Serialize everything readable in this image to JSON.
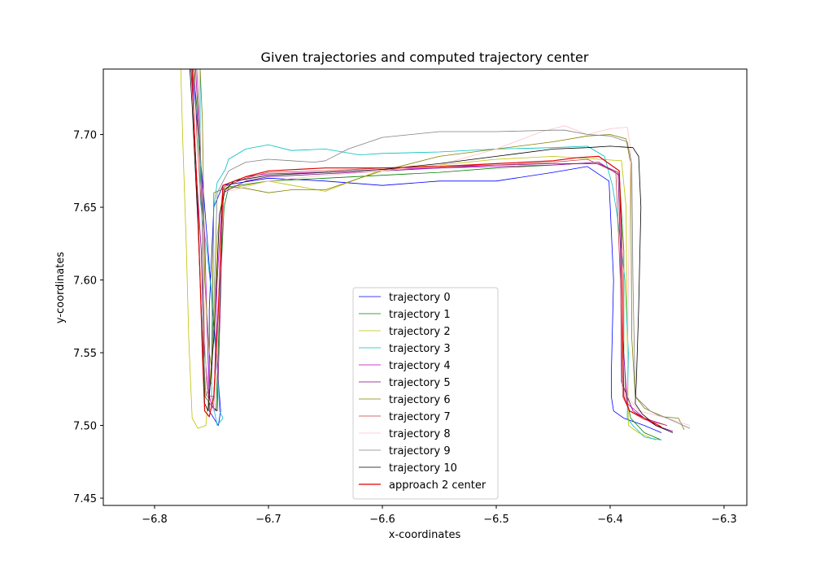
{
  "chart_data": {
    "type": "line",
    "title": "Given trajectories and computed trajectory center",
    "xlabel": "x-coordinates",
    "ylabel": "y-coordinates",
    "xlim": [
      -6.845,
      -6.28
    ],
    "ylim": [
      7.445,
      7.745
    ],
    "xticks": [
      -6.8,
      -6.7,
      -6.6,
      -6.5,
      -6.4,
      -6.3
    ],
    "yticks": [
      7.45,
      7.5,
      7.55,
      7.6,
      7.65,
      7.7
    ],
    "xtick_labels": [
      "−6.8",
      "−6.7",
      "−6.6",
      "−6.5",
      "−6.4",
      "−6.3"
    ],
    "ytick_labels": [
      "7.45",
      "7.50",
      "7.55",
      "7.60",
      "7.65",
      "7.70"
    ],
    "grid": false,
    "legend_position": "lower center",
    "series": [
      {
        "name": "trajectory 0",
        "color": "#0000ff",
        "x": [
          -6.767,
          -6.764,
          -6.757,
          -6.751,
          -6.746,
          -6.742,
          -6.744,
          -6.752,
          -6.752,
          -6.748,
          -6.74,
          -6.7,
          -6.65,
          -6.6,
          -6.55,
          -6.5,
          -6.45,
          -6.42,
          -6.401,
          -6.397,
          -6.399,
          -6.399,
          -6.397,
          -6.388,
          -6.37,
          -6.355
        ],
        "y": [
          7.745,
          7.72,
          7.66,
          7.6,
          7.55,
          7.51,
          7.5,
          7.51,
          7.58,
          7.65,
          7.665,
          7.67,
          7.668,
          7.665,
          7.668,
          7.668,
          7.674,
          7.678,
          7.668,
          7.6,
          7.535,
          7.52,
          7.51,
          7.505,
          7.5,
          7.495
        ]
      },
      {
        "name": "trajectory 1",
        "color": "#008000",
        "x": [
          -6.766,
          -6.763,
          -6.758,
          -6.757,
          -6.756,
          -6.746,
          -6.742,
          -6.739,
          -6.735,
          -6.7,
          -6.65,
          -6.6,
          -6.55,
          -6.5,
          -6.45,
          -6.41,
          -6.392,
          -6.388,
          -6.388,
          -6.386,
          -6.382,
          -6.37,
          -6.355
        ],
        "y": [
          7.745,
          7.72,
          7.65,
          7.58,
          7.52,
          7.51,
          7.6,
          7.65,
          7.664,
          7.668,
          7.67,
          7.672,
          7.674,
          7.677,
          7.679,
          7.681,
          7.672,
          7.62,
          7.55,
          7.52,
          7.505,
          7.495,
          7.49
        ]
      },
      {
        "name": "trajectory 2",
        "color": "#bfbf00",
        "x": [
          -6.777,
          -6.775,
          -6.772,
          -6.77,
          -6.767,
          -6.762,
          -6.755,
          -6.748,
          -6.745,
          -6.74,
          -6.72,
          -6.7,
          -6.65,
          -6.62,
          -6.6,
          -6.55,
          -6.5,
          -6.45,
          -6.41,
          -6.39,
          -6.386,
          -6.385,
          -6.384,
          -6.375,
          -6.36
        ],
        "y": [
          7.745,
          7.69,
          7.62,
          7.56,
          7.505,
          7.498,
          7.5,
          7.56,
          7.63,
          7.662,
          7.665,
          7.668,
          7.661,
          7.67,
          7.676,
          7.679,
          7.683,
          7.685,
          7.683,
          7.682,
          7.65,
          7.56,
          7.5,
          7.495,
          7.49
        ]
      },
      {
        "name": "trajectory 3",
        "color": "#00bfbf",
        "x": [
          -6.76,
          -6.76,
          -6.76,
          -6.754,
          -6.75,
          -6.749,
          -6.746,
          -6.744,
          -6.743,
          -6.74,
          -6.745,
          -6.75,
          -6.748,
          -6.745,
          -6.741,
          -6.738,
          -6.735,
          -6.72,
          -6.7,
          -6.68,
          -6.65,
          -6.62,
          -6.6,
          -6.55,
          -6.5,
          -6.45,
          -6.42,
          -6.405,
          -6.398,
          -6.393,
          -6.387,
          -6.384,
          -6.385,
          -6.38,
          -6.37,
          -6.355
        ],
        "y": [
          7.745,
          7.71,
          7.655,
          7.62,
          7.59,
          7.57,
          7.55,
          7.53,
          7.51,
          7.505,
          7.5,
          7.52,
          7.65,
          7.667,
          7.672,
          7.676,
          7.683,
          7.69,
          7.693,
          7.689,
          7.69,
          7.686,
          7.687,
          7.688,
          7.69,
          7.691,
          7.692,
          7.685,
          7.665,
          7.64,
          7.6,
          7.55,
          7.505,
          7.5,
          7.492,
          7.49
        ]
      },
      {
        "name": "trajectory 4",
        "color": "#bf00bf",
        "x": [
          -6.764,
          -6.76,
          -6.756,
          -6.754,
          -6.752,
          -6.748,
          -6.745,
          -6.74,
          -6.72,
          -6.7,
          -6.65,
          -6.6,
          -6.55,
          -6.5,
          -6.45,
          -6.41,
          -6.392,
          -6.39,
          -6.389,
          -6.385,
          -6.37,
          -6.35
        ],
        "y": [
          7.745,
          7.69,
          7.63,
          7.57,
          7.52,
          7.51,
          7.6,
          7.665,
          7.671,
          7.673,
          7.674,
          7.676,
          7.677,
          7.678,
          7.679,
          7.681,
          7.672,
          7.62,
          7.56,
          7.515,
          7.505,
          7.5
        ]
      },
      {
        "name": "trajectory 5",
        "color": "#800080",
        "x": [
          -6.768,
          -6.766,
          -6.763,
          -6.759,
          -6.757,
          -6.752,
          -6.745,
          -6.742,
          -6.74,
          -6.72,
          -6.7,
          -6.65,
          -6.6,
          -6.55,
          -6.5,
          -6.45,
          -6.41,
          -6.393,
          -6.391,
          -6.39,
          -6.38,
          -6.36,
          -6.345
        ],
        "y": [
          7.745,
          7.72,
          7.67,
          7.62,
          7.56,
          7.515,
          7.51,
          7.59,
          7.66,
          7.668,
          7.671,
          7.673,
          7.675,
          7.677,
          7.679,
          7.68,
          7.68,
          7.674,
          7.62,
          7.53,
          7.51,
          7.5,
          7.496
        ]
      },
      {
        "name": "trajectory 6",
        "color": "#808000",
        "x": [
          -6.76,
          -6.758,
          -6.757,
          -6.756,
          -6.752,
          -6.75,
          -6.748,
          -6.735,
          -6.72,
          -6.7,
          -6.68,
          -6.65,
          -6.62,
          -6.6,
          -6.55,
          -6.5,
          -6.45,
          -6.42,
          -6.4,
          -6.386,
          -6.382,
          -6.381,
          -6.378,
          -6.37,
          -6.355,
          -6.34,
          -6.335
        ],
        "y": [
          7.745,
          7.71,
          7.66,
          7.6,
          7.55,
          7.54,
          7.66,
          7.664,
          7.663,
          7.66,
          7.662,
          7.662,
          7.67,
          7.675,
          7.685,
          7.69,
          7.695,
          7.699,
          7.7,
          7.697,
          7.68,
          7.56,
          7.52,
          7.512,
          7.506,
          7.505,
          7.497
        ]
      },
      {
        "name": "trajectory 7",
        "color": "#bf4040",
        "x": [
          -6.765,
          -6.763,
          -6.758,
          -6.756,
          -6.754,
          -6.748,
          -6.743,
          -6.739,
          -6.72,
          -6.7,
          -6.65,
          -6.6,
          -6.55,
          -6.5,
          -6.45,
          -6.42,
          -6.395,
          -6.391,
          -6.389,
          -6.383,
          -6.37,
          -6.35
        ],
        "y": [
          7.745,
          7.7,
          7.64,
          7.56,
          7.52,
          7.52,
          7.6,
          7.664,
          7.67,
          7.674,
          7.675,
          7.677,
          7.678,
          7.679,
          7.681,
          7.683,
          7.674,
          7.6,
          7.52,
          7.51,
          7.504,
          7.5
        ]
      },
      {
        "name": "trajectory 8",
        "color": "#ffc0cb",
        "x": [
          -6.762,
          -6.76,
          -6.758,
          -6.756,
          -6.754,
          -6.748,
          -6.745,
          -6.74,
          -6.7,
          -6.65,
          -6.6,
          -6.55,
          -6.5,
          -6.46,
          -6.44,
          -6.42,
          -6.4,
          -6.385,
          -6.382,
          -6.384,
          -6.385,
          -6.375,
          -6.35,
          -6.33
        ],
        "y": [
          7.745,
          7.7,
          7.63,
          7.56,
          7.52,
          7.51,
          7.55,
          7.66,
          7.668,
          7.672,
          7.675,
          7.679,
          7.69,
          7.702,
          7.706,
          7.7,
          7.704,
          7.705,
          7.69,
          7.6,
          7.52,
          7.51,
          7.505,
          7.5
        ]
      },
      {
        "name": "trajectory 9",
        "color": "#808080",
        "x": [
          -6.763,
          -6.76,
          -6.758,
          -6.757,
          -6.755,
          -6.75,
          -6.745,
          -6.735,
          -6.72,
          -6.7,
          -6.68,
          -6.66,
          -6.65,
          -6.63,
          -6.6,
          -6.55,
          -6.5,
          -6.45,
          -6.44,
          -6.42,
          -6.4,
          -6.385,
          -6.381,
          -6.38,
          -6.378,
          -6.365,
          -6.35,
          -6.33
        ],
        "y": [
          7.745,
          7.7,
          7.63,
          7.55,
          7.52,
          7.53,
          7.66,
          7.675,
          7.681,
          7.683,
          7.682,
          7.681,
          7.682,
          7.69,
          7.698,
          7.702,
          7.702,
          7.703,
          7.703,
          7.7,
          7.699,
          7.695,
          7.68,
          7.6,
          7.52,
          7.51,
          7.505,
          7.498
        ]
      },
      {
        "name": "trajectory 10",
        "color": "#000000",
        "x": [
          -6.769,
          -6.767,
          -6.762,
          -6.758,
          -6.756,
          -6.753,
          -6.748,
          -6.743,
          -6.738,
          -6.73,
          -6.7,
          -6.65,
          -6.6,
          -6.55,
          -6.5,
          -6.45,
          -6.42,
          -6.4,
          -6.38,
          -6.375,
          -6.373,
          -6.375,
          -6.377,
          -6.378,
          -6.372,
          -6.36,
          -6.345
        ],
        "y": [
          7.745,
          7.72,
          7.64,
          7.56,
          7.515,
          7.51,
          7.56,
          7.645,
          7.662,
          7.668,
          7.672,
          7.674,
          7.676,
          7.68,
          7.685,
          7.69,
          7.691,
          7.692,
          7.691,
          7.685,
          7.65,
          7.58,
          7.53,
          7.515,
          7.508,
          7.5,
          7.495
        ]
      },
      {
        "name": "approach 2 center",
        "color": "#e00000",
        "x": [
          -6.767,
          -6.765,
          -6.762,
          -6.76,
          -6.758,
          -6.756,
          -6.752,
          -6.748,
          -6.744,
          -6.743,
          -6.74,
          -6.72,
          -6.7,
          -6.65,
          -6.6,
          -6.55,
          -6.5,
          -6.45,
          -6.43,
          -6.41,
          -6.392,
          -6.39,
          -6.389,
          -6.388,
          -6.383,
          -6.37,
          -6.355
        ],
        "y": [
          7.745,
          7.7,
          7.65,
          7.6,
          7.55,
          7.51,
          7.506,
          7.52,
          7.58,
          7.6,
          7.665,
          7.671,
          7.675,
          7.677,
          7.677,
          7.678,
          7.68,
          7.682,
          7.684,
          7.685,
          7.675,
          7.63,
          7.56,
          7.52,
          7.51,
          7.505,
          7.499
        ]
      }
    ]
  }
}
